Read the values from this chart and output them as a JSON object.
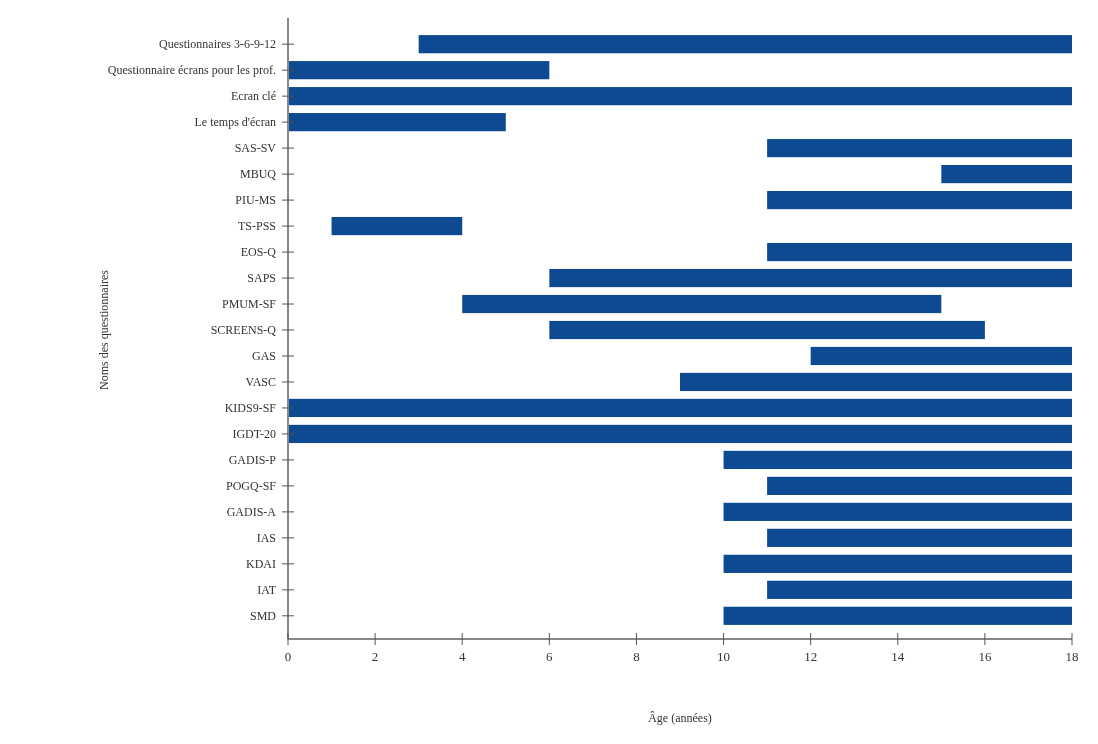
{
  "chart_data": {
    "type": "bar",
    "orientation": "horizontal",
    "xlabel": "Âge (années)",
    "ylabel": "Noms des questionnaires",
    "categories": [
      "Questionnaires 3-6-9-12",
      "Questionnaire écrans pour les prof.",
      "Ecran clé",
      "Le temps d'écran",
      "SAS-SV",
      "MBUQ",
      "PIU-MS",
      "TS-PSS",
      "EOS-Q",
      "SAPS",
      "PMUM-SF",
      "SCREENS-Q",
      "GAS",
      "VASC",
      "KIDS9-SF",
      "IGDT-20",
      "GADIS-P",
      "POGQ-SF",
      "GADIS-A",
      "IAS",
      "KDAI",
      "IAT",
      "SMD"
    ],
    "base": [
      3,
      0,
      0,
      0,
      11,
      15,
      11,
      1,
      11,
      6,
      4,
      6,
      12,
      9,
      0,
      0,
      10,
      11,
      10,
      11,
      10,
      11,
      10
    ],
    "values": [
      15,
      6,
      18,
      5,
      7,
      3,
      7,
      3,
      7,
      12,
      11,
      10,
      6,
      9,
      18,
      18,
      8,
      7,
      8,
      7,
      8,
      7,
      8
    ],
    "color": "#0d4a91",
    "xlim": [
      0,
      18
    ],
    "xticks": [
      0,
      2,
      4,
      6,
      8,
      10,
      12,
      14,
      16,
      18
    ]
  }
}
